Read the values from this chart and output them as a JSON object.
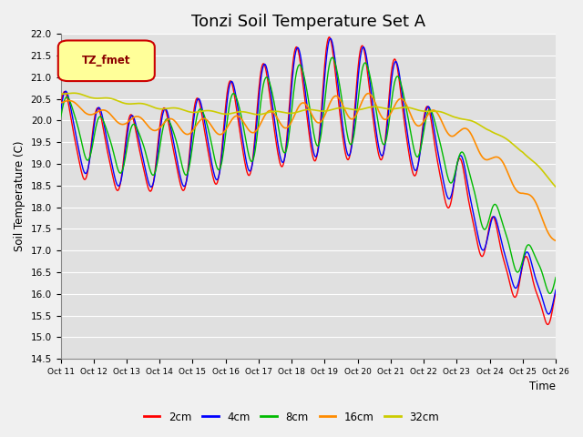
{
  "title": "Tonzi Soil Temperature Set A",
  "ylabel": "Soil Temperature (C)",
  "xlabel": "Time",
  "ylim": [
    14.5,
    22.0
  ],
  "yticks": [
    14.5,
    15.0,
    15.5,
    16.0,
    16.5,
    17.0,
    17.5,
    18.0,
    18.5,
    19.0,
    19.5,
    20.0,
    20.5,
    21.0,
    21.5,
    22.0
  ],
  "xtick_labels": [
    "Oct 11",
    "Oct 12",
    "Oct 13",
    "Oct 14",
    "Oct 15",
    "Oct 16",
    "Oct 17",
    "Oct 18",
    "Oct 19",
    "Oct 20",
    "Oct 21",
    "Oct 22",
    "Oct 23",
    "Oct 24",
    "Oct 25",
    "Oct 26"
  ],
  "legend_label": "TZ_fmet",
  "line_colors": {
    "2cm": "#FF0000",
    "4cm": "#0000FF",
    "8cm": "#00BB00",
    "16cm": "#FF8C00",
    "32cm": "#CCCC00"
  },
  "background_color": "#E0E0E0",
  "grid_color": "#FFFFFF",
  "title_fontsize": 13,
  "fig_facecolor": "#F0F0F0"
}
